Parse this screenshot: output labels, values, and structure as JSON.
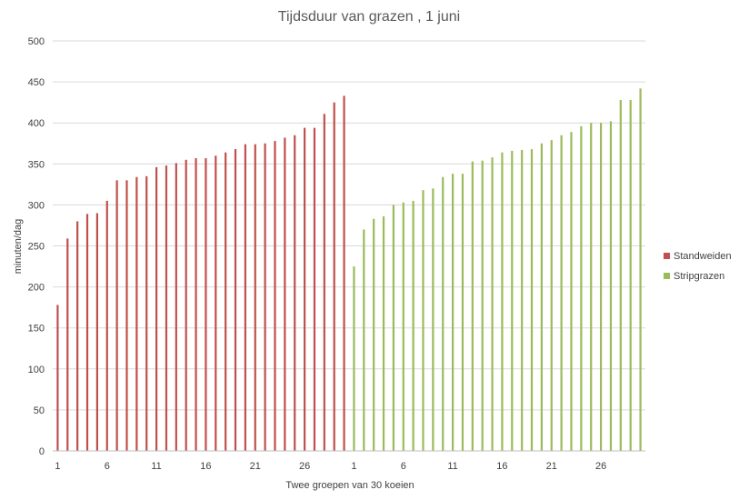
{
  "chart_data": {
    "type": "bar",
    "title": "Tijdsduur van grazen , 1 juni",
    "xlabel": "Twee groepen van 30 koeien",
    "ylabel": "minuten/dag",
    "ylim": [
      0,
      500
    ],
    "yticks": [
      "0",
      "50",
      "100",
      "150",
      "200",
      "250",
      "300",
      "350",
      "400",
      "450",
      "500"
    ],
    "grid": true,
    "legend_position": "right",
    "series": [
      {
        "name": "Standweiden",
        "color": "#c0504d",
        "x_ticks": [
          "1",
          "6",
          "11",
          "16",
          "21",
          "26"
        ],
        "values": [
          178,
          259,
          280,
          289,
          290,
          305,
          330,
          330,
          334,
          335,
          346,
          348,
          351,
          355,
          357,
          357,
          360,
          364,
          368,
          374,
          374,
          375,
          378,
          382,
          385,
          394,
          394,
          411,
          425,
          433
        ]
      },
      {
        "name": "Stripgrazen",
        "color": "#9bbb59",
        "x_ticks": [
          "1",
          "6",
          "11",
          "16",
          "21",
          "26"
        ],
        "values": [
          225,
          270,
          283,
          286,
          300,
          303,
          305,
          318,
          320,
          334,
          338,
          338,
          353,
          354,
          358,
          364,
          366,
          367,
          368,
          375,
          379,
          385,
          389,
          396,
          400,
          400,
          402,
          428,
          428,
          442
        ]
      }
    ]
  }
}
